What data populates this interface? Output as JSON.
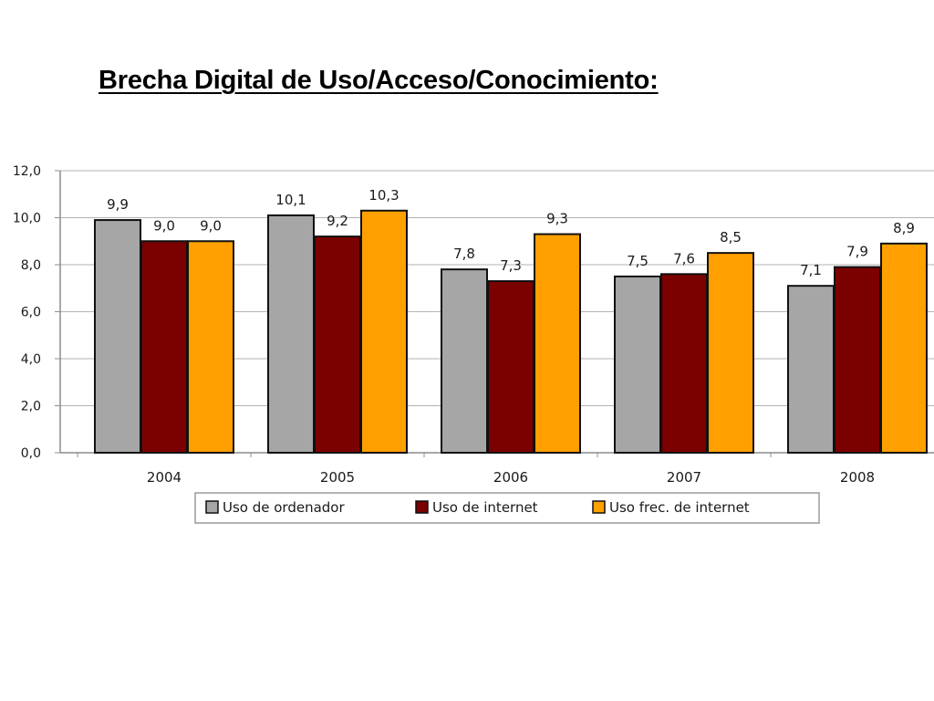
{
  "slide": {
    "title": "Brecha Digital de Uso/Acceso/Conocimiento:"
  },
  "chart_data": {
    "type": "bar",
    "title": "",
    "xlabel": "",
    "ylabel": "",
    "categories": [
      "2004",
      "2005",
      "2006",
      "2007",
      "2008"
    ],
    "series": [
      {
        "name": "Uso de ordenador",
        "color": "#a6a6a6",
        "values": [
          9.9,
          10.1,
          7.8,
          7.5,
          7.1
        ],
        "labels": [
          "9,9",
          "10,1",
          "7,8",
          "7,5",
          "7,1"
        ]
      },
      {
        "name": "Uso de internet",
        "color": "#7b0000",
        "values": [
          9.0,
          9.2,
          7.3,
          7.6,
          7.9
        ],
        "labels": [
          "9,0",
          "9,2",
          "7,3",
          "7,6",
          "7,9"
        ]
      },
      {
        "name": "Uso frec. de internet",
        "color": "#ffa000",
        "values": [
          9.0,
          10.3,
          9.3,
          8.5,
          8.9
        ],
        "labels": [
          "9,0",
          "10,3",
          "9,3",
          "8,5",
          "8,9"
        ]
      }
    ],
    "ylim": [
      0,
      12
    ],
    "yticks": [
      0,
      2,
      4,
      6,
      8,
      10,
      12
    ],
    "ytick_labels": [
      "0,0",
      "2,0",
      "4,0",
      "6,0",
      "8,0",
      "10,0",
      "12,0"
    ],
    "grid": true,
    "legend": "bottom-center"
  }
}
